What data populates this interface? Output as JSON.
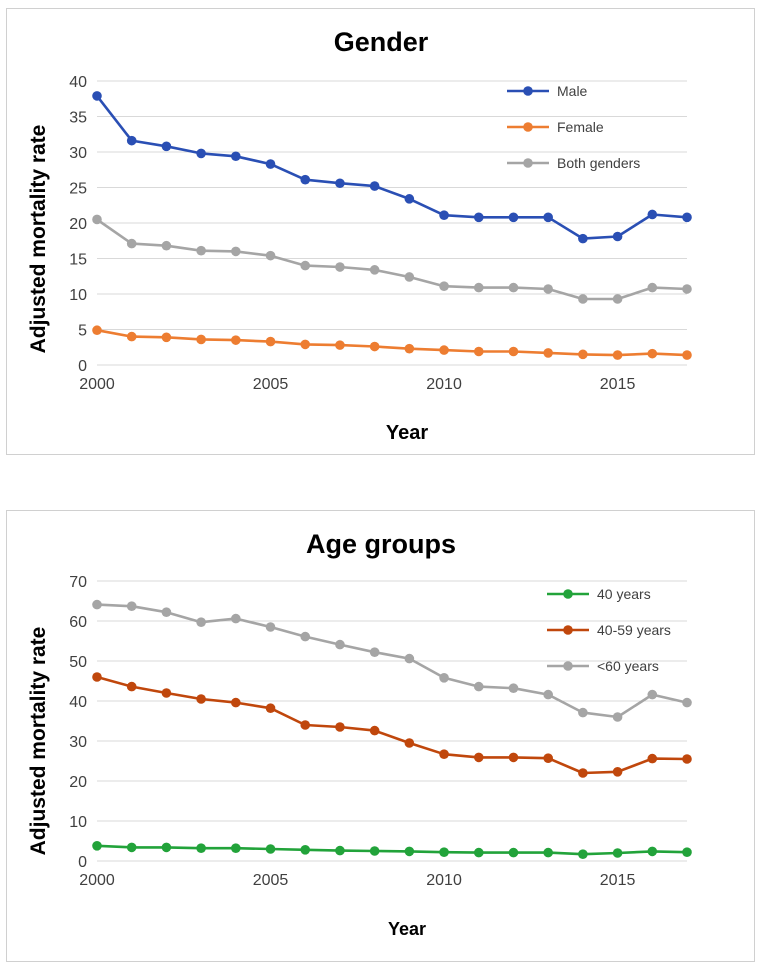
{
  "chart_data": [
    {
      "type": "line",
      "title": "Gender",
      "xlabel": "Year",
      "ylabel": "Adjusted mortality rate",
      "x": [
        2000,
        2001,
        2002,
        2003,
        2004,
        2005,
        2006,
        2007,
        2008,
        2009,
        2010,
        2011,
        2012,
        2013,
        2014,
        2015,
        2016,
        2017
      ],
      "xlim": [
        2000,
        2017
      ],
      "xticks": [
        2000,
        2005,
        2010,
        2015
      ],
      "ylim": [
        0,
        40
      ],
      "yticks": [
        0,
        5,
        10,
        15,
        20,
        25,
        30,
        35,
        40
      ],
      "grid": true,
      "legend_position": "top-right",
      "series": [
        {
          "name": "Male",
          "color": "#2a4fb4",
          "values": [
            37.9,
            31.6,
            30.8,
            29.8,
            29.4,
            28.3,
            26.1,
            25.6,
            25.2,
            23.4,
            21.1,
            20.8,
            20.8,
            20.8,
            17.8,
            18.1,
            21.2,
            20.8
          ]
        },
        {
          "name": "Female",
          "color": "#ed7d31",
          "values": [
            4.9,
            4.0,
            3.9,
            3.6,
            3.5,
            3.3,
            2.9,
            2.8,
            2.6,
            2.3,
            2.1,
            1.9,
            1.9,
            1.7,
            1.5,
            1.4,
            1.6,
            1.4
          ]
        },
        {
          "name": "Both genders",
          "color": "#a5a5a5",
          "values": [
            20.5,
            17.1,
            16.8,
            16.1,
            16.0,
            15.4,
            14.0,
            13.8,
            13.4,
            12.4,
            11.1,
            10.9,
            10.9,
            10.7,
            9.3,
            9.3,
            10.9,
            10.7
          ]
        }
      ]
    },
    {
      "type": "line",
      "title": "Age groups",
      "xlabel": "Year",
      "ylabel": "Adjusted mortality rate",
      "x": [
        2000,
        2001,
        2002,
        2003,
        2004,
        2005,
        2006,
        2007,
        2008,
        2009,
        2010,
        2011,
        2012,
        2013,
        2014,
        2015,
        2016,
        2017
      ],
      "xlim": [
        2000,
        2017
      ],
      "xticks": [
        2000,
        2005,
        2010,
        2015
      ],
      "ylim": [
        0,
        70
      ],
      "yticks": [
        0,
        10,
        20,
        30,
        40,
        50,
        60,
        70
      ],
      "grid": true,
      "legend_position": "top-right",
      "series": [
        {
          "name": "40 years",
          "color": "#22a33a",
          "values": [
            3.8,
            3.4,
            3.4,
            3.2,
            3.2,
            3.0,
            2.8,
            2.6,
            2.5,
            2.4,
            2.2,
            2.1,
            2.1,
            2.1,
            1.7,
            2.0,
            2.4,
            2.2
          ]
        },
        {
          "name": "40-59 years",
          "color": "#c0470c",
          "values": [
            46.0,
            43.6,
            42.0,
            40.5,
            39.6,
            38.2,
            34.0,
            33.5,
            32.6,
            29.5,
            26.7,
            25.9,
            25.9,
            25.7,
            22.0,
            22.3,
            25.6,
            25.5
          ]
        },
        {
          "name": "<60 years",
          "color": "#a5a5a5",
          "values": [
            64.1,
            63.7,
            62.2,
            59.7,
            60.6,
            58.5,
            56.1,
            54.1,
            52.2,
            50.6,
            45.8,
            43.6,
            43.2,
            41.6,
            37.1,
            36.0,
            41.6,
            39.6
          ]
        }
      ]
    }
  ]
}
